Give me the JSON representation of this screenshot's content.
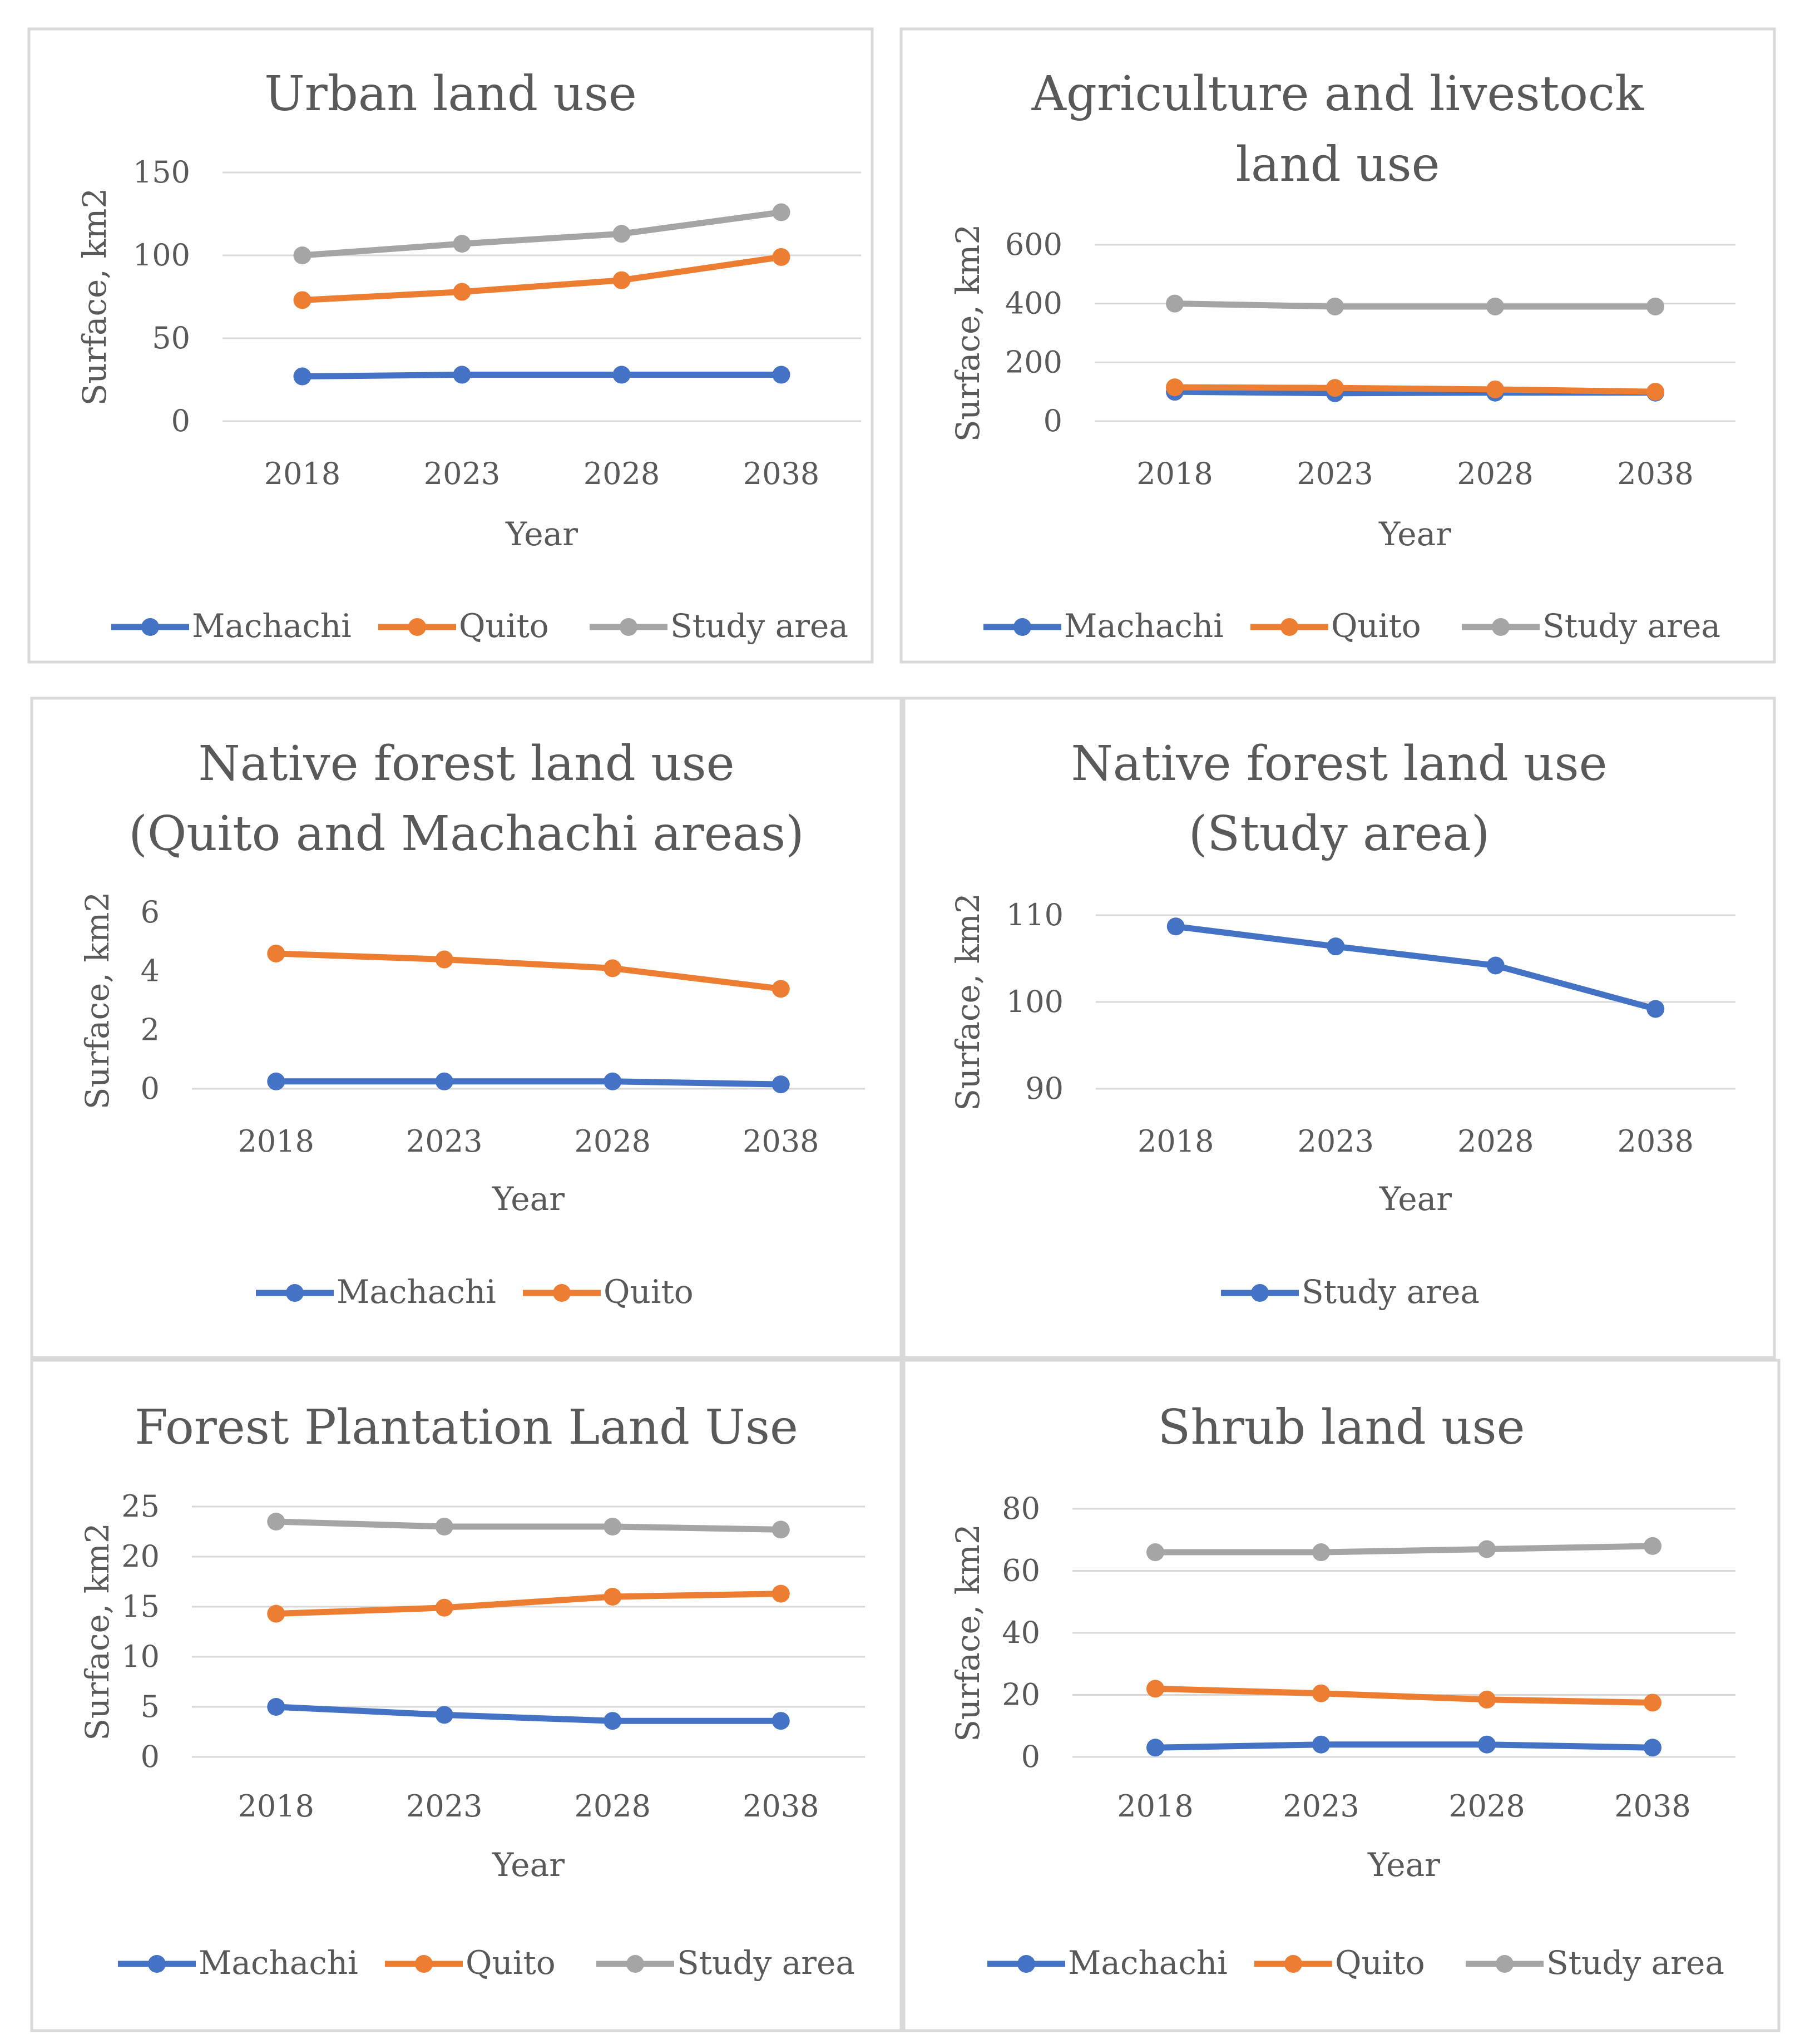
{
  "colors": {
    "machachi": "#4472C4",
    "quito": "#ED7D31",
    "study": "#A5A5A5"
  },
  "chart_data": [
    {
      "type": "line",
      "title_lines": [
        "Urban land use"
      ],
      "categories": [
        "2018",
        "2023",
        "2028",
        "2038"
      ],
      "xlabel": "Year",
      "ylabel": "Surface, km2",
      "ylim": [
        0,
        150
      ],
      "yticks": [
        "0",
        "50",
        "100",
        "150"
      ],
      "grid": true,
      "legend": "bottom",
      "series": [
        {
          "name": "Machachi",
          "color": "#4472C4",
          "values": [
            27,
            28,
            28,
            28
          ]
        },
        {
          "name": "Quito",
          "color": "#ED7D31",
          "values": [
            73,
            78,
            85,
            99
          ]
        },
        {
          "name": "Study area",
          "color": "#A5A5A5",
          "values": [
            100,
            107,
            113,
            126
          ]
        }
      ]
    },
    {
      "type": "line",
      "title_lines": [
        "Agriculture  and livestock",
        "land use"
      ],
      "categories": [
        "2018",
        "2023",
        "2028",
        "2038"
      ],
      "xlabel": "Year",
      "ylabel": "Surface, km2",
      "ylim": [
        0,
        600
      ],
      "yticks": [
        "0",
        "200",
        "400",
        "600"
      ],
      "grid": true,
      "legend": "bottom",
      "series": [
        {
          "name": "Machachi",
          "color": "#4472C4",
          "values": [
            100,
            95,
            97,
            97
          ]
        },
        {
          "name": "Quito",
          "color": "#ED7D31",
          "values": [
            115,
            113,
            108,
            100
          ]
        },
        {
          "name": "Study area",
          "color": "#A5A5A5",
          "values": [
            400,
            390,
            390,
            390
          ]
        }
      ]
    },
    {
      "type": "line",
      "title_lines": [
        "Native forest land use",
        "(Quito  and Machachi areas)"
      ],
      "categories": [
        "2018",
        "2023",
        "2028",
        "2038"
      ],
      "xlabel": "Year",
      "ylabel": "Surface, km2",
      "ylim": [
        0,
        6
      ],
      "yticks": [
        "0",
        "2",
        "4",
        "6"
      ],
      "grid": false,
      "legend": "bottom",
      "series": [
        {
          "name": "Machachi",
          "color": "#4472C4",
          "values": [
            0.25,
            0.25,
            0.25,
            0.15
          ]
        },
        {
          "name": "Quito",
          "color": "#ED7D31",
          "values": [
            4.6,
            4.4,
            4.1,
            3.4
          ]
        }
      ]
    },
    {
      "type": "line",
      "title_lines": [
        "Native forest land use",
        "(Study area)"
      ],
      "categories": [
        "2018",
        "2023",
        "2028",
        "2038"
      ],
      "xlabel": "Year",
      "ylabel": "Surface, km2",
      "ylim": [
        90,
        110
      ],
      "yticks": [
        "90",
        "100",
        "110"
      ],
      "grid": true,
      "legend": "bottom",
      "series": [
        {
          "name": "Study area",
          "color": "#4472C4",
          "values": [
            108.7,
            106.4,
            104.2,
            99.2
          ]
        }
      ]
    },
    {
      "type": "line",
      "title_lines": [
        "Forest Plantation Land Use"
      ],
      "categories": [
        "2018",
        "2023",
        "2028",
        "2038"
      ],
      "xlabel": "Year",
      "ylabel": "Surface, km2",
      "ylim": [
        0,
        25
      ],
      "yticks": [
        "0",
        "5",
        "10",
        "15",
        "20",
        "25"
      ],
      "grid": true,
      "legend": "bottom",
      "series": [
        {
          "name": "Machachi",
          "color": "#4472C4",
          "values": [
            5,
            4.2,
            3.6,
            3.6
          ]
        },
        {
          "name": "Quito",
          "color": "#ED7D31",
          "values": [
            14.3,
            14.9,
            16,
            16.3
          ]
        },
        {
          "name": "Study area",
          "color": "#A5A5A5",
          "values": [
            23.5,
            23,
            23,
            22.7
          ]
        }
      ]
    },
    {
      "type": "line",
      "title_lines": [
        "Shrub land use"
      ],
      "categories": [
        "2018",
        "2023",
        "2028",
        "2038"
      ],
      "xlabel": "Year",
      "ylabel": "Surface, km2",
      "ylim": [
        0,
        80
      ],
      "yticks": [
        "0",
        "20",
        "40",
        "60",
        "80"
      ],
      "grid": true,
      "legend": "bottom",
      "series": [
        {
          "name": "Machachi",
          "color": "#4472C4",
          "values": [
            3,
            4,
            4,
            3
          ]
        },
        {
          "name": "Quito",
          "color": "#ED7D31",
          "values": [
            22,
            20.5,
            18.5,
            17.5
          ]
        },
        {
          "name": "Study area",
          "color": "#A5A5A5",
          "values": [
            66,
            66,
            67,
            68
          ]
        }
      ]
    }
  ]
}
